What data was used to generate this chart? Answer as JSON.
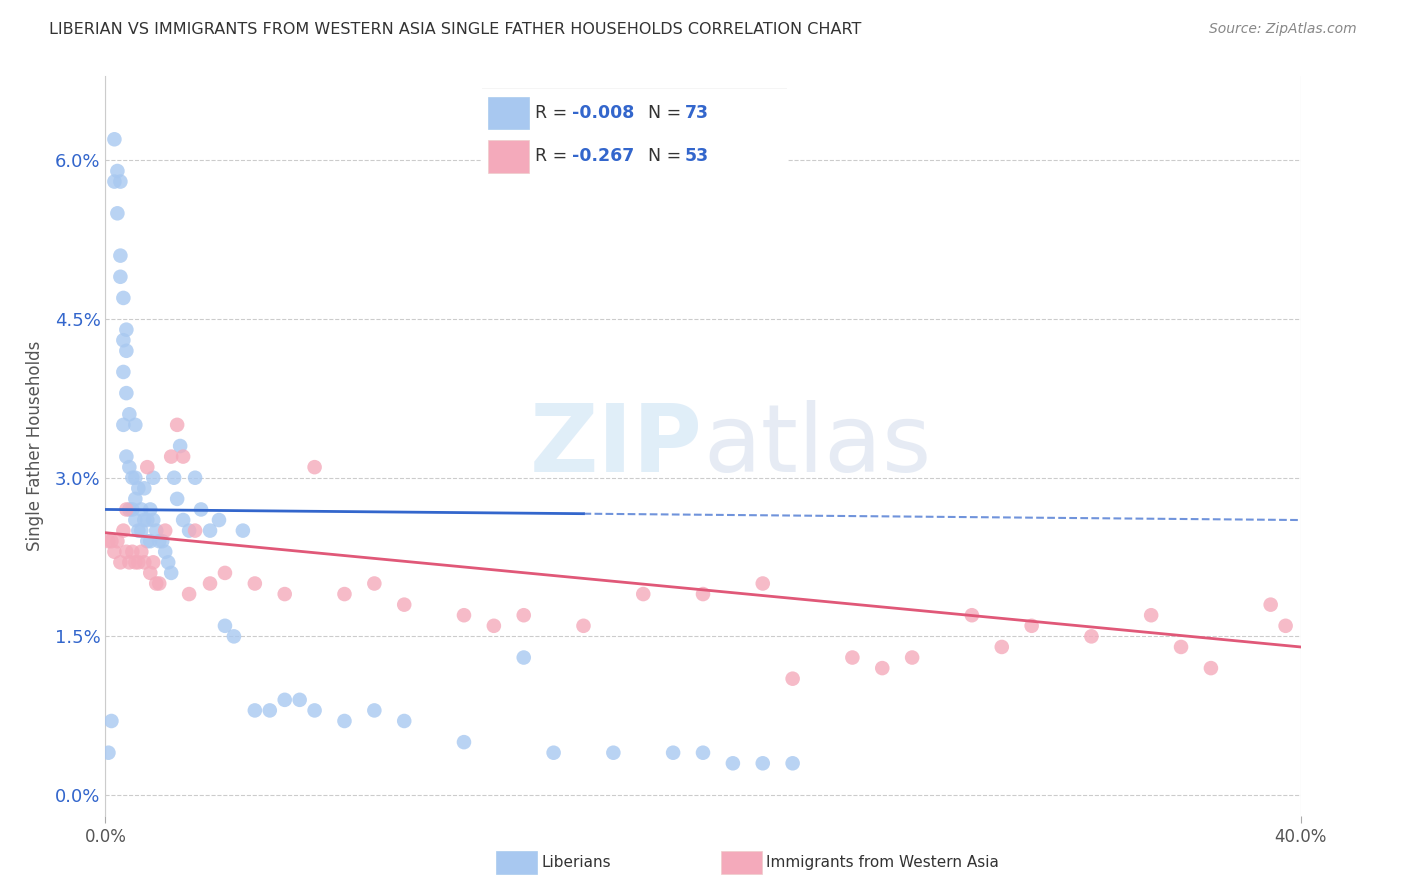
{
  "title": "LIBERIAN VS IMMIGRANTS FROM WESTERN ASIA SINGLE FATHER HOUSEHOLDS CORRELATION CHART",
  "source": "Source: ZipAtlas.com",
  "ylabel": "Single Father Households",
  "ytick_values": [
    0.0,
    0.015,
    0.03,
    0.045,
    0.06
  ],
  "xlim": [
    0.0,
    0.4
  ],
  "ylim": [
    -0.002,
    0.068
  ],
  "blue_R": "-0.008",
  "blue_N": "73",
  "pink_R": "-0.267",
  "pink_N": "53",
  "blue_color": "#A8C8F0",
  "pink_color": "#F4AABB",
  "blue_line_color": "#3366CC",
  "pink_line_color": "#E05878",
  "legend_label_blue": "Liberians",
  "legend_label_pink": "Immigrants from Western Asia",
  "watermark_zip": "ZIP",
  "watermark_atlas": "atlas",
  "blue_line_start": 0.0,
  "blue_line_end_solid": 0.16,
  "blue_line_end_dash": 0.4,
  "blue_line_y_start": 0.027,
  "blue_line_y_end": 0.026,
  "pink_line_y_start": 0.0248,
  "pink_line_y_end": 0.014,
  "blue_x": [
    0.001,
    0.002,
    0.003,
    0.003,
    0.004,
    0.004,
    0.005,
    0.005,
    0.005,
    0.006,
    0.006,
    0.006,
    0.006,
    0.007,
    0.007,
    0.007,
    0.007,
    0.008,
    0.008,
    0.008,
    0.009,
    0.009,
    0.01,
    0.01,
    0.01,
    0.01,
    0.011,
    0.011,
    0.012,
    0.012,
    0.013,
    0.013,
    0.014,
    0.014,
    0.015,
    0.015,
    0.016,
    0.016,
    0.017,
    0.018,
    0.019,
    0.02,
    0.021,
    0.022,
    0.023,
    0.024,
    0.025,
    0.026,
    0.028,
    0.03,
    0.032,
    0.035,
    0.038,
    0.04,
    0.043,
    0.046,
    0.05,
    0.055,
    0.06,
    0.065,
    0.07,
    0.08,
    0.09,
    0.1,
    0.12,
    0.14,
    0.15,
    0.17,
    0.19,
    0.2,
    0.21,
    0.22,
    0.23
  ],
  "blue_y": [
    0.004,
    0.007,
    0.058,
    0.062,
    0.055,
    0.059,
    0.049,
    0.051,
    0.058,
    0.04,
    0.043,
    0.047,
    0.035,
    0.032,
    0.038,
    0.042,
    0.044,
    0.027,
    0.031,
    0.036,
    0.027,
    0.03,
    0.026,
    0.028,
    0.03,
    0.035,
    0.025,
    0.029,
    0.025,
    0.027,
    0.026,
    0.029,
    0.024,
    0.026,
    0.024,
    0.027,
    0.026,
    0.03,
    0.025,
    0.024,
    0.024,
    0.023,
    0.022,
    0.021,
    0.03,
    0.028,
    0.033,
    0.026,
    0.025,
    0.03,
    0.027,
    0.025,
    0.026,
    0.016,
    0.015,
    0.025,
    0.008,
    0.008,
    0.009,
    0.009,
    0.008,
    0.007,
    0.008,
    0.007,
    0.005,
    0.013,
    0.004,
    0.004,
    0.004,
    0.004,
    0.003,
    0.003,
    0.003
  ],
  "pink_x": [
    0.001,
    0.002,
    0.003,
    0.004,
    0.005,
    0.006,
    0.007,
    0.007,
    0.008,
    0.009,
    0.01,
    0.011,
    0.012,
    0.013,
    0.014,
    0.015,
    0.016,
    0.017,
    0.018,
    0.02,
    0.022,
    0.024,
    0.026,
    0.028,
    0.03,
    0.035,
    0.04,
    0.05,
    0.06,
    0.07,
    0.08,
    0.1,
    0.12,
    0.14,
    0.16,
    0.18,
    0.2,
    0.22,
    0.25,
    0.27,
    0.29,
    0.31,
    0.33,
    0.35,
    0.37,
    0.39,
    0.395,
    0.36,
    0.3,
    0.26,
    0.23,
    0.13,
    0.09
  ],
  "pink_y": [
    0.024,
    0.024,
    0.023,
    0.024,
    0.022,
    0.025,
    0.023,
    0.027,
    0.022,
    0.023,
    0.022,
    0.022,
    0.023,
    0.022,
    0.031,
    0.021,
    0.022,
    0.02,
    0.02,
    0.025,
    0.032,
    0.035,
    0.032,
    0.019,
    0.025,
    0.02,
    0.021,
    0.02,
    0.019,
    0.031,
    0.019,
    0.018,
    0.017,
    0.017,
    0.016,
    0.019,
    0.019,
    0.02,
    0.013,
    0.013,
    0.017,
    0.016,
    0.015,
    0.017,
    0.012,
    0.018,
    0.016,
    0.014,
    0.014,
    0.012,
    0.011,
    0.016,
    0.02
  ]
}
